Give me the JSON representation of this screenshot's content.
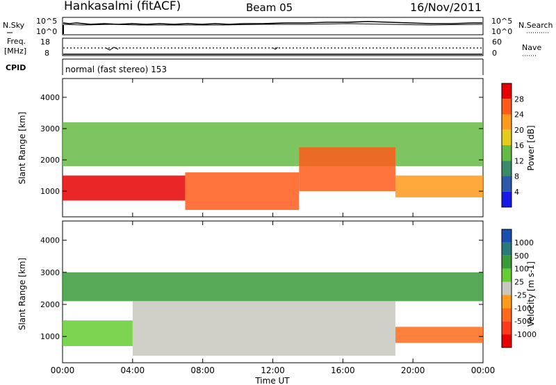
{
  "header": {
    "station": "Hankasalmi (fitACF)",
    "beam": "Beam 05",
    "date": "16/Nov/2011"
  },
  "noise_panel": {
    "left_label": "N.Sky",
    "right_label": "N.Search",
    "left_ticks": [
      "10^5",
      "10^0"
    ],
    "right_ticks": [
      "10^5",
      "10^0"
    ]
  },
  "freq_panel": {
    "left_label_line1": "Freq.",
    "left_label_line2": "[MHz]",
    "right_label": "Nave",
    "left_ticks": [
      "18",
      "8"
    ],
    "right_ticks": [
      "60",
      "0"
    ]
  },
  "cpid_panel": {
    "label": "CPID",
    "text": "normal (fast stereo) 153"
  },
  "chart_data": [
    {
      "type": "heatmap",
      "title": "",
      "ylabel": "Slant Range [km]",
      "xlabel": "",
      "ylim": [
        180,
        4600
      ],
      "yticks": [
        "1000",
        "2000",
        "3000",
        "4000"
      ],
      "colorbar": {
        "label": "Power [dB]",
        "ticks": [
          "4",
          "8",
          "12",
          "16",
          "20",
          "24",
          "28"
        ],
        "colors": [
          "#1a1ae6",
          "#2a5aa8",
          "#3a8a6a",
          "#66bb44",
          "#e6cc1a",
          "#ff9a1a",
          "#ff5a1a",
          "#e60000"
        ]
      },
      "regions": [
        {
          "t0": 0,
          "t1": 7,
          "r0": 700,
          "r1": 1500,
          "value": 28
        },
        {
          "t0": 7,
          "t1": 13.5,
          "r0": 400,
          "r1": 1600,
          "value": 26
        },
        {
          "t0": 13.5,
          "t1": 19,
          "r0": 1000,
          "r1": 2400,
          "value": 24
        },
        {
          "t0": 19,
          "t1": 24,
          "r0": 800,
          "r1": 1500,
          "value": 22
        },
        {
          "t0": 0,
          "t1": 24,
          "r0": 1800,
          "r1": 3200,
          "value": 14
        }
      ]
    },
    {
      "type": "heatmap",
      "title": "",
      "ylabel": "Slant Range [km]",
      "xlabel": "Time UT",
      "ylim": [
        180,
        4600
      ],
      "yticks": [
        "1000",
        "2000",
        "3000",
        "4000"
      ],
      "xticks": [
        "00:00",
        "04:00",
        "08:00",
        "12:00",
        "16:00",
        "20:00",
        "00:00"
      ],
      "colorbar": {
        "label": "Velocity [m s-1]",
        "ticks": [
          "1000",
          "500",
          "100",
          "25",
          "-25",
          "-100",
          "-500",
          "-1000"
        ],
        "colors": [
          "#1a4fb0",
          "#2a7a7a",
          "#3a9a3a",
          "#66cc33",
          "#c8c8c0",
          "#ff9a1a",
          "#ff6a1a",
          "#ff3a1a",
          "#e60000"
        ]
      },
      "regions": [
        {
          "t0": 0,
          "t1": 4,
          "r0": 700,
          "r1": 1500,
          "value": 50
        },
        {
          "t0": 4,
          "t1": 19,
          "r0": 400,
          "r1": 2100,
          "value": 0
        },
        {
          "t0": 19,
          "t1": 24,
          "r0": 800,
          "r1": 1300,
          "value": -300
        },
        {
          "t0": 0,
          "t1": 24,
          "r0": 2100,
          "r1": 3000,
          "value": 100
        }
      ]
    }
  ]
}
